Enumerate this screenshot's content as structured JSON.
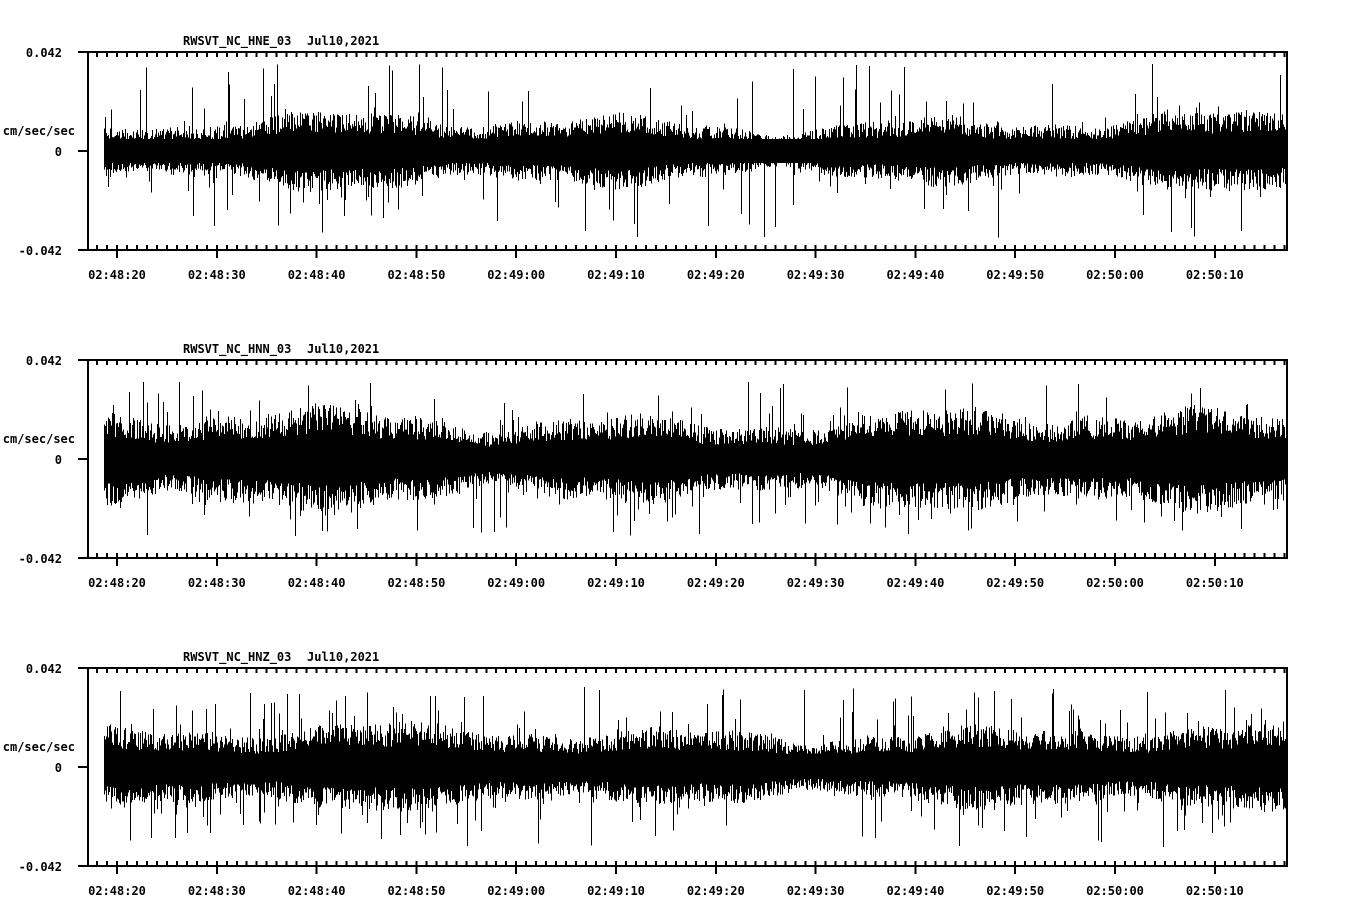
{
  "page": {
    "background": "#ffffff",
    "trace_color": "#000000"
  },
  "chart_data": [
    {
      "type": "line",
      "chart_kind": "seismogram-trace",
      "station": "RWSVT_NC_HNE_03",
      "date": "Jul10,2021",
      "title": "RWSVT_NC_HNE_03  Jul10,2021",
      "ylabel": "cm/sec/sec",
      "ylim": [
        -0.042,
        0.042
      ],
      "y_tick_labels": [
        "0.042",
        "0",
        "-0.042"
      ],
      "x_tick_labels": [
        "02:48:20",
        "02:48:30",
        "02:48:40",
        "02:48:50",
        "02:49:00",
        "02:49:10",
        "02:49:20",
        "02:49:30",
        "02:49:40",
        "02:49:50",
        "02:50:00",
        "02:50:10"
      ],
      "x_major_interval_seconds": 10,
      "x_minor_interval_seconds": 1,
      "grid": false,
      "legend": false,
      "trace_color": "#000000",
      "noise_envelope": {
        "mean": 0,
        "typical_amplitude": 0.011,
        "peak_amplitude": 0.037
      },
      "render": {
        "seed": 101,
        "band_base": 0.0105,
        "band_variation": 0.0025,
        "spike_probability": 0.1,
        "spike_max": 0.037,
        "spike_power": 2.2
      }
    },
    {
      "type": "line",
      "chart_kind": "seismogram-trace",
      "station": "RWSVT_NC_HNN_03",
      "date": "Jul10,2021",
      "title": "RWSVT_NC_HNN_03  Jul10,2021",
      "ylabel": "cm/sec/sec",
      "ylim": [
        -0.042,
        0.042
      ],
      "y_tick_labels": [
        "0.042",
        "0",
        "-0.042"
      ],
      "x_tick_labels": [
        "02:48:20",
        "02:48:30",
        "02:48:40",
        "02:48:50",
        "02:49:00",
        "02:49:10",
        "02:49:20",
        "02:49:30",
        "02:49:40",
        "02:49:50",
        "02:50:00",
        "02:50:10"
      ],
      "x_major_interval_seconds": 10,
      "x_minor_interval_seconds": 1,
      "grid": false,
      "legend": false,
      "trace_color": "#000000",
      "noise_envelope": {
        "mean": 0,
        "typical_amplitude": 0.015,
        "peak_amplitude": 0.033
      },
      "render": {
        "seed": 202,
        "band_base": 0.0145,
        "band_variation": 0.003,
        "spike_probability": 0.12,
        "spike_max": 0.033,
        "spike_power": 2.0
      }
    },
    {
      "type": "line",
      "chart_kind": "seismogram-trace",
      "station": "RWSVT_NC_HNZ_03",
      "date": "Jul10,2021",
      "title": "RWSVT_NC_HNZ_03  Jul10,2021",
      "ylabel": "cm/sec/sec",
      "ylim": [
        -0.042,
        0.042
      ],
      "y_tick_labels": [
        "0.042",
        "0",
        "-0.042"
      ],
      "x_tick_labels": [
        "02:48:20",
        "02:48:30",
        "02:48:40",
        "02:48:50",
        "02:49:00",
        "02:49:10",
        "02:49:20",
        "02:49:30",
        "02:49:40",
        "02:49:50",
        "02:50:00",
        "02:50:10"
      ],
      "x_major_interval_seconds": 10,
      "x_minor_interval_seconds": 1,
      "grid": false,
      "legend": false,
      "trace_color": "#000000",
      "noise_envelope": {
        "mean": 0,
        "typical_amplitude": 0.0125,
        "peak_amplitude": 0.034
      },
      "render": {
        "seed": 303,
        "band_base": 0.0125,
        "band_variation": 0.0022,
        "spike_probability": 0.16,
        "spike_max": 0.034,
        "spike_power": 2.2
      }
    }
  ]
}
